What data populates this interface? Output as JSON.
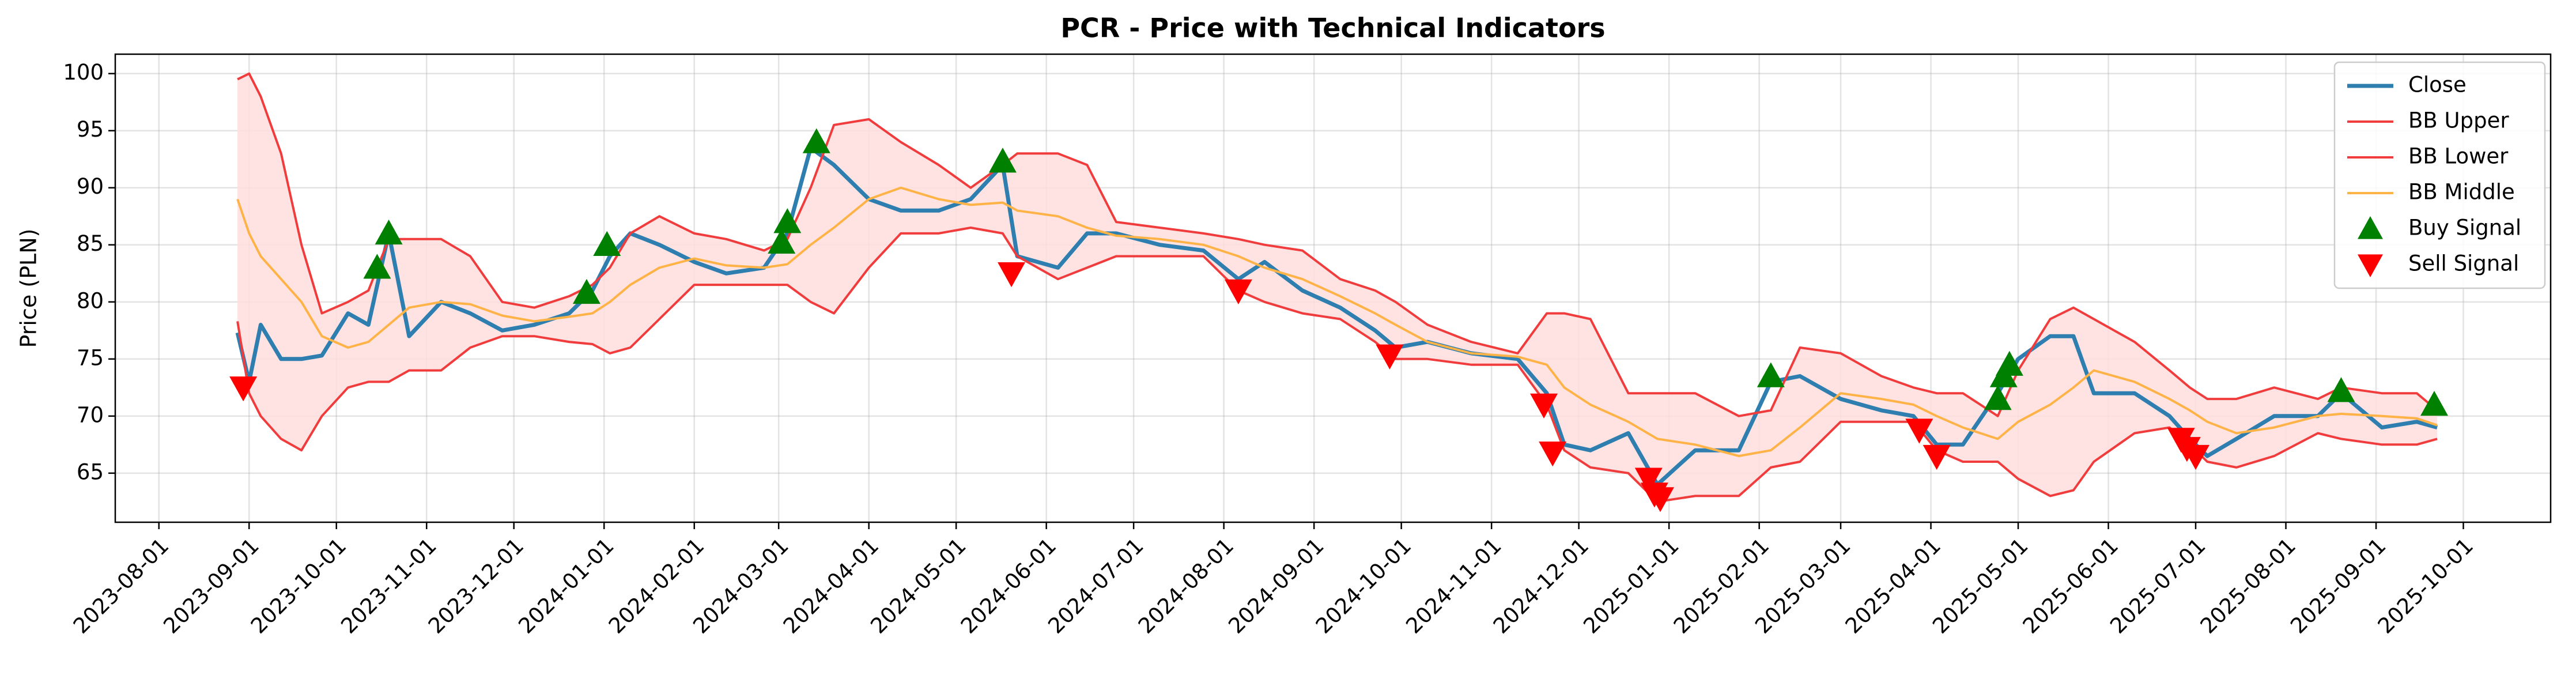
{
  "chart_data": {
    "type": "line",
    "title": "PCR - Price with Technical Indicators",
    "y_label": "Price (PLN)",
    "x": [
      "2023-08-28",
      "2023-09-01",
      "2023-09-05",
      "2023-09-12",
      "2023-09-19",
      "2023-09-26",
      "2023-10-05",
      "2023-10-12",
      "2023-10-19",
      "2023-10-26",
      "2023-11-06",
      "2023-11-16",
      "2023-11-27",
      "2023-12-08",
      "2023-12-20",
      "2023-12-28",
      "2024-01-03",
      "2024-01-10",
      "2024-01-20",
      "2024-02-01",
      "2024-02-12",
      "2024-02-25",
      "2024-03-04",
      "2024-03-12",
      "2024-03-20",
      "2024-04-01",
      "2024-04-12",
      "2024-04-25",
      "2024-05-06",
      "2024-05-17",
      "2024-05-22",
      "2024-06-05",
      "2024-06-15",
      "2024-06-25",
      "2024-07-10",
      "2024-07-25",
      "2024-08-06",
      "2024-08-15",
      "2024-08-28",
      "2024-09-10",
      "2024-09-22",
      "2024-09-29",
      "2024-10-10",
      "2024-10-25",
      "2024-11-10",
      "2024-11-20",
      "2024-11-26",
      "2024-12-05",
      "2024-12-18",
      "2024-12-28",
      "2025-01-10",
      "2025-01-25",
      "2025-02-05",
      "2025-02-15",
      "2025-03-01",
      "2025-03-15",
      "2025-03-26",
      "2025-04-03",
      "2025-04-12",
      "2025-04-24",
      "2025-05-01",
      "2025-05-12",
      "2025-05-20",
      "2025-05-27",
      "2025-06-10",
      "2025-06-22",
      "2025-06-29",
      "2025-07-05",
      "2025-07-15",
      "2025-07-28",
      "2025-08-12",
      "2025-08-20",
      "2025-09-03",
      "2025-09-15",
      "2025-09-22"
    ],
    "series": [
      {
        "name": "Close",
        "color": "#2e7eb0",
        "width": 7,
        "values": [
          77.3,
          73,
          78,
          75,
          75,
          75.3,
          79,
          78,
          86,
          77,
          80,
          79,
          77.5,
          78,
          79,
          81,
          84,
          86,
          85,
          83.5,
          82.5,
          83,
          86,
          93.5,
          92,
          89,
          88,
          88,
          89,
          92,
          84,
          83,
          86,
          86,
          85,
          84.5,
          82,
          83.5,
          81,
          79.5,
          77.5,
          76,
          76.5,
          75.5,
          75,
          72,
          67.5,
          67,
          68.5,
          64,
          67,
          67,
          73,
          73.5,
          71.5,
          70.5,
          70,
          67.5,
          67.5,
          72,
          75,
          77,
          77,
          72,
          72,
          70,
          68,
          66.5,
          68,
          70,
          70,
          72,
          69,
          69.5,
          69
        ]
      },
      {
        "name": "BB Upper",
        "color": "#f03c3c",
        "width": 4,
        "fill_color": "#ffdede",
        "values": [
          99.5,
          100,
          98,
          93,
          85,
          79,
          80,
          81,
          85.5,
          85.5,
          85.5,
          84,
          80,
          79.5,
          80.5,
          81.5,
          83,
          86,
          87.5,
          86,
          85.5,
          84.5,
          85.5,
          90,
          95.5,
          96,
          94,
          92,
          90,
          92,
          93,
          93,
          92,
          87,
          86.5,
          86,
          85.5,
          85,
          84.5,
          82,
          81,
          80,
          78,
          76.5,
          75.5,
          79,
          79,
          78.5,
          72,
          72,
          72,
          70,
          70.5,
          76,
          75.5,
          73.5,
          72.5,
          72,
          72,
          70,
          74,
          78.5,
          79.5,
          78.5,
          76.5,
          74,
          72.5,
          71.5,
          71.5,
          72.5,
          71.5,
          72.5,
          72,
          72,
          70.5
        ]
      },
      {
        "name": "BB Lower",
        "color": "#f03c3c",
        "width": 4,
        "values": [
          78.3,
          72,
          70,
          68,
          67,
          70,
          72.5,
          73,
          73,
          74,
          74,
          76,
          77,
          77,
          76.5,
          76.3,
          75.5,
          76,
          78.5,
          81.5,
          81.5,
          81.5,
          81.5,
          80,
          79,
          83,
          86,
          86,
          86.5,
          86,
          84,
          82,
          83,
          84,
          84,
          84,
          81,
          80,
          79,
          78.5,
          76.5,
          75,
          75,
          74.5,
          74.5,
          71,
          67,
          65.5,
          65,
          62.5,
          63,
          63,
          65.5,
          66,
          69.5,
          69.5,
          69.5,
          67,
          66,
          66,
          64.5,
          63,
          63.5,
          66,
          68.5,
          69,
          67.5,
          66,
          65.5,
          66.5,
          68.5,
          68,
          67.5,
          67.5,
          68
        ]
      },
      {
        "name": "BB Middle",
        "color": "#ffb347",
        "width": 4,
        "values": [
          89,
          86,
          84,
          82,
          80,
          77,
          76,
          76.5,
          78,
          79.5,
          80,
          79.8,
          78.8,
          78.3,
          78.7,
          79,
          80,
          81.5,
          83,
          83.8,
          83.2,
          83,
          83.3,
          85,
          86.5,
          89,
          90,
          89,
          88.5,
          88.7,
          88,
          87.5,
          86.5,
          85.8,
          85.5,
          85,
          84,
          83,
          82,
          80.5,
          79,
          78,
          76.5,
          75.5,
          75.2,
          74.5,
          72.5,
          71,
          69.5,
          68,
          67.5,
          66.5,
          67,
          69,
          72,
          71.5,
          71,
          70,
          69,
          68,
          69.5,
          71,
          72.5,
          74,
          73,
          71.5,
          70.5,
          69.5,
          68.5,
          69,
          70,
          70.2,
          70,
          69.8,
          69.2
        ]
      },
      {
        "name": "Buy Signal",
        "color": "#008000",
        "marker": "^",
        "x": [
          "2023-10-15",
          "2023-10-19",
          "2023-12-26",
          "2024-01-02",
          "2024-03-02",
          "2024-03-04",
          "2024-03-14",
          "2024-05-17",
          "2025-02-05",
          "2025-04-24",
          "2025-04-26",
          "2025-04-28",
          "2025-08-20",
          "2025-09-21"
        ],
        "values": [
          83,
          86,
          80.8,
          85,
          85.2,
          87,
          94,
          92.3,
          73.5,
          71.5,
          73.5,
          74.5,
          72.2,
          71
        ]
      },
      {
        "name": "Sell Signal",
        "color": "#ff0000",
        "marker": "v",
        "x": [
          "2023-08-30",
          "2024-05-20",
          "2024-08-06",
          "2024-09-27",
          "2024-11-19",
          "2024-11-22",
          "2024-12-25",
          "2024-12-27",
          "2024-12-29",
          "2025-03-28",
          "2025-04-03",
          "2025-06-26",
          "2025-06-28",
          "2025-07-01"
        ],
        "values": [
          72.5,
          82.5,
          81,
          75.3,
          71,
          66.8,
          64.5,
          63.2,
          62.8,
          68.8,
          66.5,
          68,
          67.2,
          66.5
        ]
      }
    ],
    "xlim": [
      "2023-07-17",
      "2025-10-31"
    ],
    "xticks": [
      "2023-08-01",
      "2023-09-01",
      "2023-10-01",
      "2023-11-01",
      "2023-12-01",
      "2024-01-01",
      "2024-02-01",
      "2024-03-01",
      "2024-04-01",
      "2024-05-01",
      "2024-06-01",
      "2024-07-01",
      "2024-08-01",
      "2024-09-01",
      "2024-10-01",
      "2024-11-01",
      "2024-12-01",
      "2025-01-01",
      "2025-02-01",
      "2025-03-01",
      "2025-04-01",
      "2025-05-01",
      "2025-06-01",
      "2025-07-01",
      "2025-08-01",
      "2025-09-01",
      "2025-10-01"
    ],
    "ylim": [
      60.7,
      101.7
    ],
    "yticks": [
      65,
      70,
      75,
      80,
      85,
      90,
      95,
      100
    ],
    "grid": true,
    "legend": "upper right"
  }
}
